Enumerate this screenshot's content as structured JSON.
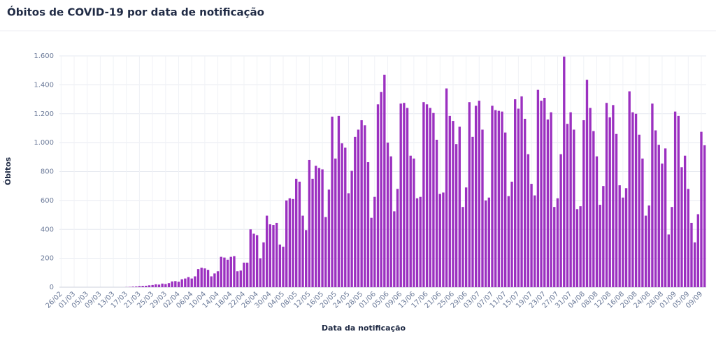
{
  "chart_data": {
    "type": "bar",
    "title": "Óbitos de COVID-19 por data de notificação",
    "x_label": "Data da notificação",
    "y_label": "Óbitos",
    "color": "#9b30c0",
    "grid": true,
    "ylim": [
      0,
      1600
    ],
    "yticks": [
      0,
      200,
      400,
      600,
      800,
      {
        "value": 1000,
        "label": "1.000"
      },
      {
        "value": 1200,
        "label": "1.200"
      },
      {
        "value": 1400,
        "label": "1.400"
      },
      {
        "value": 1600,
        "label": "1.600"
      }
    ],
    "categories": [
      "26/02",
      null,
      null,
      null,
      "01/03",
      null,
      null,
      null,
      "05/03",
      null,
      null,
      null,
      "09/03",
      null,
      null,
      null,
      "13/03",
      null,
      null,
      null,
      "17/03",
      null,
      null,
      null,
      "21/03",
      null,
      null,
      null,
      "25/03",
      null,
      null,
      null,
      "29/03",
      null,
      null,
      null,
      "02/04",
      null,
      null,
      null,
      "06/04",
      null,
      null,
      null,
      "10/04",
      null,
      null,
      null,
      "14/04",
      null,
      null,
      null,
      "18/04",
      null,
      null,
      null,
      "22/04",
      null,
      null,
      null,
      "26/04",
      null,
      null,
      null,
      "30/04",
      null,
      null,
      null,
      "04/05",
      null,
      null,
      null,
      "08/05",
      null,
      null,
      null,
      "12/05",
      null,
      null,
      null,
      "16/05",
      null,
      null,
      null,
      "20/05",
      null,
      null,
      null,
      "24/05",
      null,
      null,
      null,
      "28/05",
      null,
      null,
      null,
      "01/06",
      null,
      null,
      null,
      "05/06",
      null,
      null,
      null,
      "09/06",
      null,
      null,
      null,
      "13/06",
      null,
      null,
      null,
      "17/06",
      null,
      null,
      null,
      "21/06",
      null,
      null,
      null,
      "25/06",
      null,
      null,
      null,
      "29/06",
      null,
      null,
      null,
      "03/07",
      null,
      null,
      null,
      "07/07",
      null,
      null,
      null,
      "11/07",
      null,
      null,
      null,
      "15/07",
      null,
      null,
      null,
      "19/07",
      null,
      null,
      null,
      "23/07",
      null,
      null,
      null,
      "27/07",
      null,
      null,
      null,
      "31/07",
      null,
      null,
      null,
      "04/08",
      null,
      null,
      null,
      "08/08",
      null,
      null,
      null,
      "12/08",
      null,
      null,
      null,
      "16/08",
      null,
      null,
      null,
      "20/08",
      null,
      null,
      null,
      "24/08",
      null,
      null,
      null,
      "28/08",
      null,
      null,
      null,
      "01/09",
      null,
      null,
      null,
      "05/09",
      null,
      null,
      null,
      "09/09",
      null
    ],
    "values": [
      0,
      0,
      0,
      0,
      0,
      0,
      0,
      0,
      0,
      0,
      0,
      0,
      0,
      0,
      0,
      0,
      0,
      0,
      0,
      0,
      1,
      2,
      4,
      5,
      8,
      9,
      10,
      13,
      15,
      20,
      18,
      25,
      22,
      28,
      40,
      42,
      38,
      55,
      60,
      70,
      60,
      75,
      125,
      135,
      130,
      120,
      75,
      95,
      110,
      210,
      205,
      190,
      210,
      215,
      110,
      115,
      170,
      170,
      400,
      370,
      360,
      200,
      310,
      495,
      435,
      430,
      445,
      295,
      280,
      600,
      615,
      610,
      750,
      730,
      495,
      395,
      880,
      750,
      840,
      825,
      815,
      485,
      675,
      1180,
      890,
      1185,
      995,
      965,
      650,
      805,
      1040,
      1090,
      1155,
      1120,
      865,
      480,
      625,
      1265,
      1350,
      1470,
      1000,
      905,
      525,
      680,
      1270,
      1275,
      1240,
      910,
      890,
      615,
      625,
      1280,
      1265,
      1240,
      1205,
      1020,
      645,
      655,
      1375,
      1185,
      1150,
      990,
      1110,
      555,
      690,
      1280,
      1040,
      1255,
      1290,
      1090,
      600,
      620,
      1255,
      1225,
      1220,
      1215,
      1070,
      630,
      730,
      1300,
      1235,
      1320,
      1165,
      920,
      715,
      635,
      1365,
      1290,
      1310,
      1160,
      1210,
      555,
      615,
      920,
      1595,
      1130,
      1210,
      1090,
      540,
      560,
      1155,
      1435,
      1240,
      1080,
      905,
      570,
      700,
      1275,
      1175,
      1260,
      1060,
      705,
      620,
      685,
      1355,
      1210,
      1200,
      1055,
      890,
      495,
      565,
      1270,
      1085,
      985,
      855,
      960,
      365,
      555,
      1215,
      1185,
      830,
      910,
      680,
      445,
      310,
      505,
      1075,
      982
    ]
  }
}
